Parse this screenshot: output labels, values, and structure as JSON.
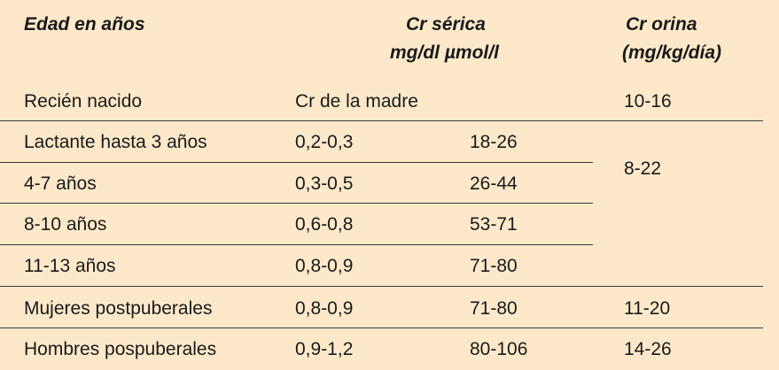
{
  "table": {
    "header": {
      "edad": "Edad en años",
      "cr_serica": "Cr sérica",
      "cr_serica_units": "mg/dl µmol/l",
      "cr_orina": "Cr orina",
      "cr_orina_units": "(mg/kg/día)"
    },
    "rows": [
      {
        "edad": "Recién nacido",
        "mgdl": "Cr de la madre",
        "umol": "",
        "orina": "10-16"
      },
      {
        "edad": "Lactante hasta 3 años",
        "mgdl": "0,2-0,3",
        "umol": "18-26",
        "orina": ""
      },
      {
        "edad": "4-7 años",
        "mgdl": "0,3-0,5",
        "umol": "26-44",
        "orina": ""
      },
      {
        "edad": "8-10 años",
        "mgdl": "0,6-0,8",
        "umol": "53-71",
        "orina": ""
      },
      {
        "edad": "11-13 años",
        "mgdl": "0,8-0,9",
        "umol": "71-80",
        "orina": ""
      },
      {
        "edad": "Mujeres postpuberales",
        "mgdl": "0,8-0,9",
        "umol": "71-80",
        "orina": "11-20"
      },
      {
        "edad": "Hombres pospuberales",
        "mgdl": "0,9-1,2",
        "umol": "80-106",
        "orina": "14-26"
      }
    ],
    "merged_orina": "8-22"
  }
}
